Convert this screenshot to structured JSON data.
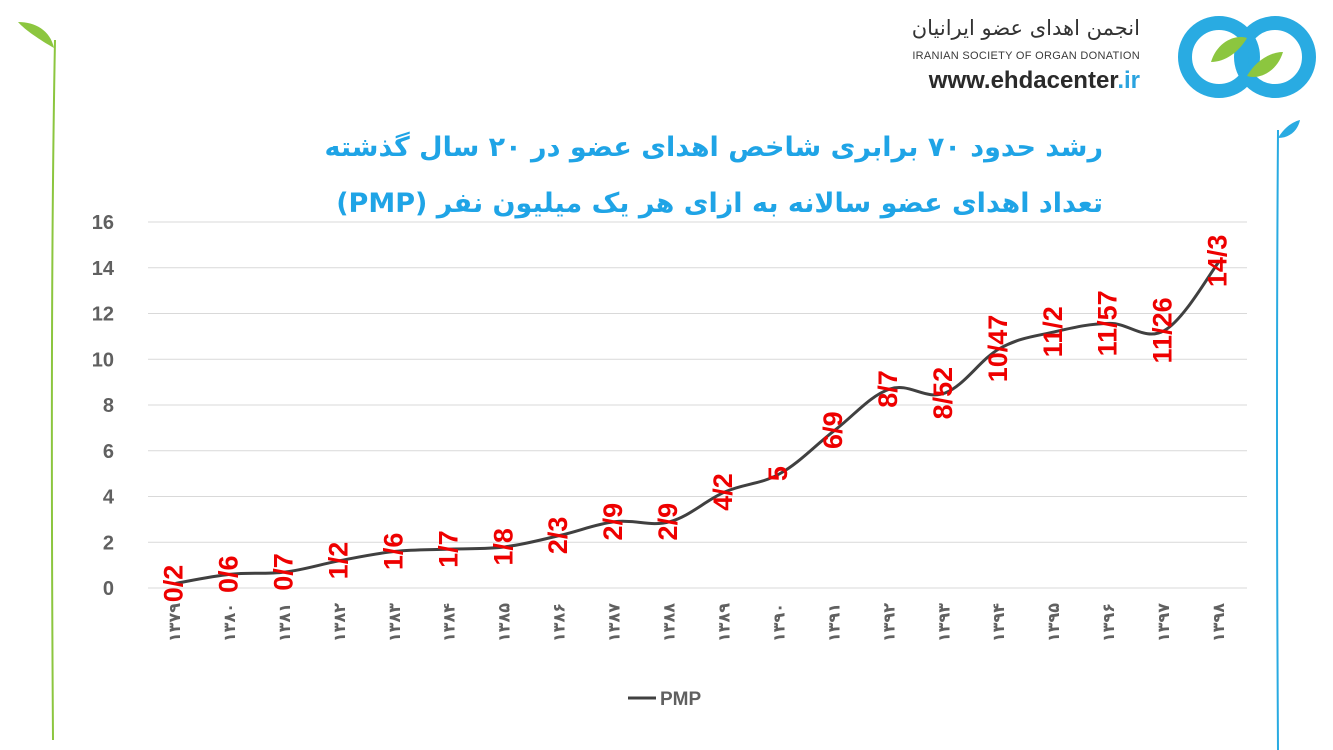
{
  "logo": {
    "name_fa": "انجمن اهدای عضو ایرانیان",
    "name_en": "IRANIAN SOCIETY OF ORGAN DONATION",
    "url_main": "www.ehdacenter",
    "url_suffix": ".ir"
  },
  "colors": {
    "title": "#1fa4e6",
    "line": "#404040",
    "labels": "#ee0000",
    "axis_text": "#606060",
    "grid": "#d9d9d9",
    "stem_left": "#8cc63f",
    "stem_right": "#29abe2"
  },
  "chart_data": {
    "type": "line",
    "title": "رشد حدود ۷۰ برابری شاخص اهدای عضو در ۲۰ سال گذشته",
    "subtitle": "تعداد اهدای عضو سالانه به ازای هر یک میلیون نفر (PMP)",
    "categories": [
      "۱۳۷۹",
      "۱۳۸۰",
      "۱۳۸۱",
      "۱۳۸۲",
      "۱۳۸۳",
      "۱۳۸۴",
      "۱۳۸۵",
      "۱۳۸۶",
      "۱۳۸۷",
      "۱۳۸۸",
      "۱۳۸۹",
      "۱۳۹۰",
      "۱۳۹۱",
      "۱۳۹۲",
      "۱۳۹۳",
      "۱۳۹۴",
      "۱۳۹۵",
      "۱۳۹۶",
      "۱۳۹۷",
      "۱۳۹۸"
    ],
    "series": [
      {
        "name": "PMP",
        "values": [
          0.2,
          0.6,
          0.7,
          1.2,
          1.6,
          1.7,
          1.8,
          2.3,
          2.9,
          2.9,
          4.2,
          5,
          6.9,
          8.7,
          8.52,
          10.47,
          11.2,
          11.57,
          11.26,
          14.3
        ],
        "data_labels": [
          "0/2",
          "0/6",
          "0/7",
          "1/2",
          "1/6",
          "1/7",
          "1/8",
          "2/3",
          "2/9",
          "2/9",
          "4/2",
          "5",
          "6/9",
          "8/7",
          "8/52",
          "10/47",
          "11/2",
          "11/57",
          "11/26",
          "14/3"
        ]
      }
    ],
    "ylim": [
      0,
      16
    ],
    "yticks": [
      "0",
      "2",
      "4",
      "6",
      "8",
      "10",
      "12",
      "14",
      "16"
    ],
    "grid": true,
    "legend_position": "bottom-center"
  }
}
